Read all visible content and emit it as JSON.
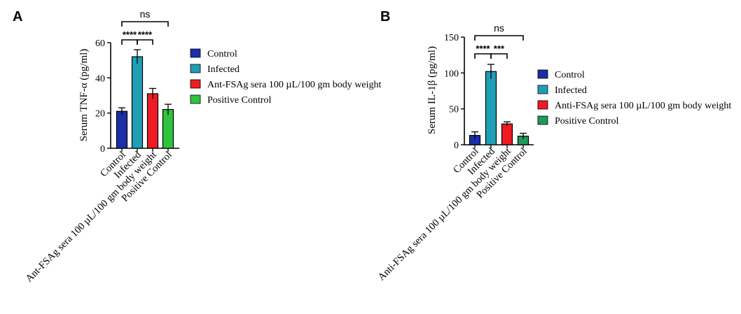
{
  "colors": {
    "control": "#1c2fa8",
    "infected": "#1f9fb6",
    "treated": "#ee1b24",
    "positive_a": "#2ec43e",
    "positive_b": "#1d9a5a"
  },
  "chart_data": [
    {
      "type": "bar",
      "panel": "A",
      "ylabel": "Serum TNF-α (pg/ml)",
      "ylim": [
        0,
        60
      ],
      "yticks": [
        "0",
        "20",
        "40",
        "60"
      ],
      "categories": [
        "Control",
        "Infected",
        "Ant-FSAg sera 100 µL/100 gm body weight",
        "Positive Control"
      ],
      "values": [
        21,
        52,
        31,
        22
      ],
      "errors": [
        2,
        4,
        3,
        3
      ],
      "legend": [
        "Control",
        "Infected",
        "Ant-FSAg sera 100 µL/100 gm body weight",
        "Positive Control"
      ],
      "legend_position": "right",
      "significance": [
        {
          "from": 0,
          "to": 3,
          "label": "ns"
        },
        {
          "from": 0,
          "to": 1,
          "label": "****"
        },
        {
          "from": 1,
          "to": 2,
          "label": "****"
        }
      ]
    },
    {
      "type": "bar",
      "panel": "B",
      "ylabel": "Serum IL-1β (pg/ml)",
      "ylim": [
        0,
        150
      ],
      "yticks": [
        "0",
        "50",
        "100",
        "150"
      ],
      "categories": [
        "Control",
        "Infected",
        "Anti-FSAg sera 100 µL/100 gm body weight",
        "Positive Control"
      ],
      "values": [
        13,
        102,
        29,
        12
      ],
      "errors": [
        5,
        10,
        3,
        4
      ],
      "legend": [
        "Control",
        "Infected",
        "Anti-FSAg sera 100 µL/100 gm body weight",
        "Positive Control"
      ],
      "legend_position": "right",
      "significance": [
        {
          "from": 0,
          "to": 3,
          "label": "ns"
        },
        {
          "from": 0,
          "to": 1,
          "label": "****"
        },
        {
          "from": 1,
          "to": 2,
          "label": "***"
        }
      ]
    }
  ]
}
